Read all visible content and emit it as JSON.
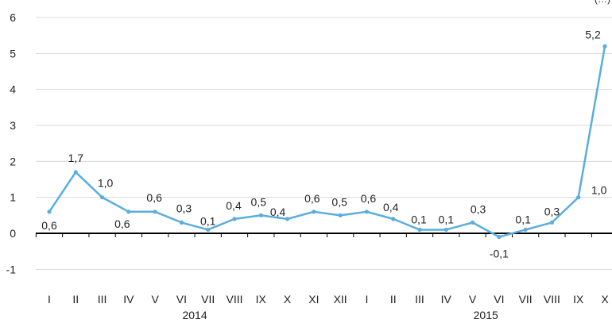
{
  "corner_note": "(…)",
  "chart_data": {
    "type": "line",
    "title": "",
    "xlabel": "",
    "ylabel": "",
    "ylim": [
      -1,
      6
    ],
    "yticks": [
      -1,
      0,
      1,
      2,
      3,
      4,
      5,
      6
    ],
    "grid": true,
    "categories": [
      "I",
      "II",
      "III",
      "IV",
      "V",
      "VI",
      "VII",
      "VIII",
      "IX",
      "X",
      "XI",
      "XII",
      "I",
      "II",
      "III",
      "IV",
      "V",
      "VI",
      "VII",
      "VIII",
      "IX",
      "X"
    ],
    "groups": [
      {
        "label": "2014",
        "start": 0,
        "end": 11
      },
      {
        "label": "2015",
        "start": 12,
        "end": 21
      }
    ],
    "series": [
      {
        "color": "#5aade0",
        "values": [
          0.6,
          1.7,
          1.0,
          0.6,
          0.6,
          0.3,
          0.1,
          0.4,
          0.5,
          0.4,
          0.6,
          0.5,
          0.6,
          0.4,
          0.1,
          0.1,
          0.3,
          -0.1,
          0.1,
          0.3,
          1.0,
          5.2
        ],
        "labels": [
          "0,6",
          "1,7",
          "1,0",
          "0,6",
          "0,6",
          "0,3",
          "0,1",
          "0,4",
          "0,5",
          "0,4",
          "0,6",
          "0,5",
          "0,6",
          "0,4",
          "0,1",
          "0,1",
          "0,3",
          "-0,1",
          "0,1",
          "0,3",
          "1,0",
          "5,2"
        ]
      }
    ]
  }
}
